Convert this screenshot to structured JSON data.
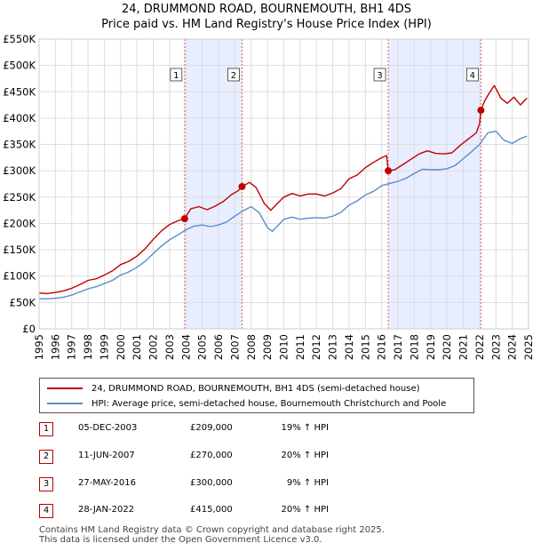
{
  "title_line1": "24, DRUMMOND ROAD, BOURNEMOUTH, BH1 4DS",
  "title_line2": "Price paid vs. HM Land Registry's House Price Index (HPI)",
  "colors": {
    "property": "#c00000",
    "hpi": "#5b8cc8",
    "shade": "#e8eeff",
    "vline": "#e06060"
  },
  "chart_data": {
    "type": "line",
    "ylim": [
      0,
      550000
    ],
    "xlim": [
      1995,
      2025
    ],
    "y_ticks": [
      0,
      50000,
      100000,
      150000,
      200000,
      250000,
      300000,
      350000,
      400000,
      450000,
      500000,
      550000
    ],
    "y_tick_labels": [
      "£0",
      "£50K",
      "£100K",
      "£150K",
      "£200K",
      "£250K",
      "£300K",
      "£350K",
      "£400K",
      "£450K",
      "£500K",
      "£550K"
    ],
    "x_ticks": [
      1995,
      1996,
      1997,
      1998,
      1999,
      2000,
      2001,
      2002,
      2003,
      2004,
      2005,
      2006,
      2007,
      2008,
      2009,
      2010,
      2011,
      2012,
      2013,
      2014,
      2015,
      2016,
      2017,
      2018,
      2019,
      2020,
      2021,
      2022,
      2023,
      2024,
      2025
    ],
    "x_tick_labels": [
      "1995",
      "1996",
      "1997",
      "1998",
      "1999",
      "2000",
      "2001",
      "2002",
      "2003",
      "2004",
      "2005",
      "2006",
      "2007",
      "2008",
      "2009",
      "2010",
      "2011",
      "2012",
      "2013",
      "2014",
      "2015",
      "2016",
      "2017",
      "2018",
      "2019",
      "2020",
      "2021",
      "2022",
      "2023",
      "2024",
      "2025"
    ],
    "shaded_ranges": [
      [
        2003.92,
        2007.44
      ],
      [
        2016.4,
        2022.08
      ]
    ],
    "series": [
      {
        "name": "24, DRUMMOND ROAD, BOURNEMOUTH, BH1 4DS (semi-detached house)",
        "x": [
          1995,
          1995.5,
          1996,
          1996.5,
          1997,
          1997.5,
          1998,
          1998.5,
          1999,
          1999.5,
          2000,
          2000.5,
          2001,
          2001.5,
          2002,
          2002.5,
          2003,
          2003.5,
          2003.92,
          2004.3,
          2004.8,
          2005.3,
          2005.8,
          2006.3,
          2006.8,
          2007.2,
          2007.44,
          2007.9,
          2008.3,
          2008.8,
          2009.2,
          2009.6,
          2010,
          2010.5,
          2011,
          2011.5,
          2012,
          2012.5,
          2013,
          2013.5,
          2014,
          2014.5,
          2015,
          2015.5,
          2016,
          2016.3,
          2016.4,
          2016.8,
          2017.3,
          2017.8,
          2018.3,
          2018.8,
          2019.3,
          2019.8,
          2020.3,
          2020.8,
          2021.3,
          2021.8,
          2022,
          2022.08,
          2022.3,
          2022.6,
          2022.9,
          2023.3,
          2023.7,
          2024.1,
          2024.5,
          2024.9
        ],
        "y": [
          68000,
          67000,
          69000,
          72000,
          77000,
          84000,
          92000,
          95000,
          102000,
          110000,
          122000,
          128000,
          138000,
          152000,
          170000,
          186000,
          198000,
          205000,
          209000,
          228000,
          232000,
          226000,
          233000,
          242000,
          255000,
          262000,
          270000,
          278000,
          268000,
          238000,
          225000,
          238000,
          250000,
          257000,
          252000,
          256000,
          256000,
          252000,
          258000,
          266000,
          285000,
          292000,
          306000,
          316000,
          325000,
          329000,
          300000,
          302000,
          312000,
          322000,
          332000,
          338000,
          333000,
          332000,
          334000,
          348000,
          360000,
          372000,
          390000,
          415000,
          432000,
          448000,
          462000,
          438000,
          428000,
          440000,
          425000,
          438000
        ]
      },
      {
        "name": "HPI: Average price, semi-detached house, Bournemouth Christchurch and Poole",
        "x": [
          1995,
          1995.5,
          1996,
          1996.5,
          1997,
          1997.5,
          1998,
          1998.5,
          1999,
          1999.5,
          2000,
          2000.5,
          2001,
          2001.5,
          2002,
          2002.5,
          2003,
          2003.5,
          2004,
          2004.5,
          2005,
          2005.5,
          2006,
          2006.5,
          2007,
          2007.5,
          2008,
          2008.5,
          2009,
          2009.3,
          2009.7,
          2010,
          2010.5,
          2011,
          2011.5,
          2012,
          2012.5,
          2013,
          2013.5,
          2014,
          2014.5,
          2015,
          2015.5,
          2016,
          2016.5,
          2017,
          2017.5,
          2018,
          2018.5,
          2019,
          2019.5,
          2020,
          2020.5,
          2021,
          2021.5,
          2022,
          2022.5,
          2023,
          2023.5,
          2024,
          2024.5,
          2024.9
        ],
        "y": [
          57000,
          57000,
          58000,
          60000,
          64000,
          70000,
          76000,
          80000,
          86000,
          92000,
          102000,
          108000,
          117000,
          128000,
          143000,
          157000,
          169000,
          178000,
          188000,
          195000,
          197000,
          194000,
          197000,
          203000,
          214000,
          224000,
          232000,
          220000,
          192000,
          185000,
          198000,
          208000,
          212000,
          208000,
          210000,
          211000,
          210000,
          214000,
          221000,
          235000,
          243000,
          254000,
          261000,
          272000,
          276000,
          280000,
          286000,
          295000,
          303000,
          302000,
          302000,
          304000,
          310000,
          323000,
          336000,
          350000,
          372000,
          375000,
          358000,
          352000,
          361000,
          366000
        ]
      }
    ],
    "sales": [
      {
        "label": "1",
        "x": 2003.92,
        "y": 209000
      },
      {
        "label": "2",
        "x": 2007.44,
        "y": 270000
      },
      {
        "label": "3",
        "x": 2016.4,
        "y": 300000
      },
      {
        "label": "4",
        "x": 2022.08,
        "y": 415000
      }
    ]
  },
  "legend": {
    "property_label": "24, DRUMMOND ROAD, BOURNEMOUTH, BH1 4DS (semi-detached house)",
    "hpi_label": "HPI: Average price, semi-detached house, Bournemouth Christchurch and Poole"
  },
  "sales_table": [
    {
      "num": "1",
      "date": "05-DEC-2003",
      "price": "£209,000",
      "hpi": "19% ↑ HPI"
    },
    {
      "num": "2",
      "date": "11-JUN-2007",
      "price": "£270,000",
      "hpi": "20% ↑ HPI"
    },
    {
      "num": "3",
      "date": "27-MAY-2016",
      "price": "£300,000",
      "hpi": "9% ↑ HPI"
    },
    {
      "num": "4",
      "date": "28-JAN-2022",
      "price": "£415,000",
      "hpi": "20% ↑ HPI"
    }
  ],
  "footer_line1": "Contains HM Land Registry data © Crown copyright and database right 2025.",
  "footer_line2": "This data is licensed under the Open Government Licence v3.0."
}
